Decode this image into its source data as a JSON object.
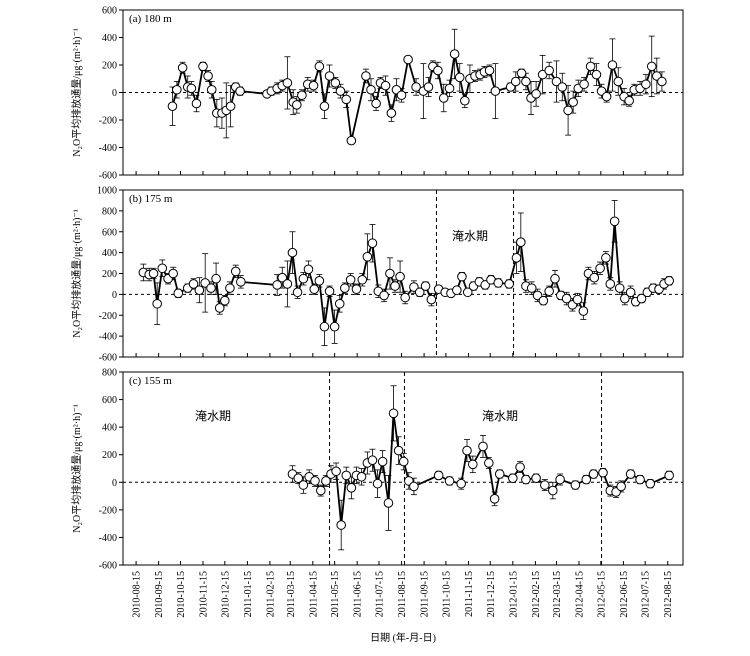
{
  "chart_data": [
    {
      "type": "line",
      "title": "(a) 180 m",
      "ylabel": "N₂O平均排放通量/μg·(m²·h)⁻¹",
      "xlim": [
        "2010-07-28",
        "2012-09-05"
      ],
      "xticks": [
        "2010-08-15",
        "2010-09-15",
        "2010-10-15",
        "2010-11-15",
        "2010-12-15",
        "2011-01-15",
        "2011-02-15",
        "2011-03-15",
        "2011-04-15",
        "2011-05-15",
        "2011-06-15",
        "2011-07-15",
        "2011-08-15",
        "2011-09-15",
        "2011-10-15",
        "2011-11-15",
        "2011-12-15",
        "2012-01-15",
        "2012-02-15",
        "2012-03-15",
        "2012-04-15",
        "2012-05-15",
        "2012-06-15",
        "2012-07-15",
        "2012-08-15"
      ],
      "ylim": [
        -600,
        600
      ],
      "yticks": [
        -600,
        -400,
        -200,
        0,
        200,
        400,
        600
      ],
      "hline": 0,
      "vlines": [],
      "annotations": [],
      "color": "#000000",
      "x": [
        "2010-10-04",
        "2010-10-10",
        "2010-10-18",
        "2010-10-25",
        "2010-10-30",
        "2010-11-06",
        "2010-11-15",
        "2010-11-22",
        "2010-11-27",
        "2010-12-04",
        "2010-12-11",
        "2010-12-17",
        "2010-12-23",
        "2010-12-30",
        "2011-01-05",
        "2011-02-11",
        "2011-02-17",
        "2011-02-25",
        "2011-03-04",
        "2011-03-11",
        "2011-03-19",
        "2011-03-24",
        "2011-03-31",
        "2011-04-08",
        "2011-04-16",
        "2011-04-24",
        "2011-05-01",
        "2011-05-08",
        "2011-05-16",
        "2011-05-23",
        "2011-05-31",
        "2011-06-07",
        "2011-06-27",
        "2011-07-04",
        "2011-07-11",
        "2011-07-17",
        "2011-07-24",
        "2011-08-01",
        "2011-08-08",
        "2011-08-15",
        "2011-08-24",
        "2011-09-04",
        "2011-09-14",
        "2011-09-21",
        "2011-09-27",
        "2011-10-04",
        "2011-10-12",
        "2011-10-20",
        "2011-10-27",
        "2011-11-03",
        "2011-11-10",
        "2011-11-17",
        "2011-11-24",
        "2011-12-01",
        "2011-12-07",
        "2011-12-14",
        "2011-12-22",
        "2012-01-12",
        "2012-01-19",
        "2012-01-27",
        "2012-02-02",
        "2012-02-09",
        "2012-02-16",
        "2012-02-25",
        "2012-03-05",
        "2012-03-15",
        "2012-03-23",
        "2012-03-31",
        "2012-04-07",
        "2012-04-14",
        "2012-04-22",
        "2012-05-01",
        "2012-05-09",
        "2012-05-16",
        "2012-05-23",
        "2012-05-31",
        "2012-06-08",
        "2012-06-16",
        "2012-06-23",
        "2012-06-30",
        "2012-07-08",
        "2012-07-16",
        "2012-07-24",
        "2012-07-31",
        "2012-08-07"
      ],
      "values": [
        -100,
        20,
        180,
        40,
        30,
        -80,
        190,
        120,
        20,
        -150,
        -150,
        -130,
        -100,
        40,
        10,
        -10,
        10,
        30,
        50,
        70,
        -70,
        -90,
        -20,
        60,
        50,
        190,
        -100,
        120,
        70,
        10,
        -50,
        -350,
        120,
        20,
        -80,
        70,
        50,
        -150,
        20,
        -20,
        240,
        40,
        10,
        40,
        190,
        160,
        -40,
        30,
        280,
        110,
        -60,
        100,
        120,
        130,
        150,
        160,
        10,
        40,
        80,
        140,
        80,
        -40,
        -10,
        130,
        160,
        80,
        40,
        -130,
        -70,
        30,
        60,
        190,
        130,
        10,
        -30,
        200,
        80,
        -30,
        -60,
        20,
        30,
        60,
        190,
        120,
        80
      ],
      "errors": [
        140,
        60,
        40,
        80,
        50,
        60,
        30,
        40,
        60,
        100,
        110,
        200,
        150,
        30,
        30,
        20,
        30,
        40,
        40,
        190,
        90,
        60,
        40,
        50,
        40,
        40,
        90,
        80,
        40,
        50,
        60,
        20,
        50,
        80,
        50,
        40,
        70,
        60,
        80,
        50,
        20,
        60,
        200,
        70,
        40,
        60,
        100,
        60,
        180,
        100,
        50,
        100,
        40,
        40,
        40,
        40,
        200,
        30,
        70,
        30,
        60,
        120,
        90,
        140,
        60,
        150,
        100,
        180,
        80,
        60,
        50,
        60,
        80,
        50,
        40,
        190,
        100,
        60,
        40,
        40,
        50,
        70,
        220,
        130,
        70
      ]
    },
    {
      "type": "line",
      "title": "(b) 175 m",
      "ylabel": "N₂O平均排放通量/μg·(m²·h)⁻¹",
      "xlim": [
        "2010-07-28",
        "2012-09-05"
      ],
      "xticks": [
        "2010-08-15",
        "2010-09-15",
        "2010-10-15",
        "2010-11-15",
        "2010-12-15",
        "2011-01-15",
        "2011-02-15",
        "2011-03-15",
        "2011-04-15",
        "2011-05-15",
        "2011-06-15",
        "2011-07-15",
        "2011-08-15",
        "2011-09-15",
        "2011-10-15",
        "2011-11-15",
        "2011-12-15",
        "2012-01-15",
        "2012-02-15",
        "2012-03-15",
        "2012-04-15",
        "2012-05-15",
        "2012-06-15",
        "2012-07-15",
        "2012-08-15"
      ],
      "ylim": [
        -600,
        1000
      ],
      "yticks": [
        -600,
        -400,
        -200,
        0,
        200,
        400,
        600,
        800,
        1000
      ],
      "hline": 0,
      "vlines": [
        "2011-10-02",
        "2012-01-16"
      ],
      "annotations": [
        "淹水期"
      ],
      "color": "#000000",
      "x": [
        "2010-08-25",
        "2010-09-02",
        "2010-09-08",
        "2010-09-13",
        "2010-09-20",
        "2010-09-28",
        "2010-10-05",
        "2010-10-12",
        "2010-10-25",
        "2010-11-02",
        "2010-11-10",
        "2010-11-18",
        "2010-11-26",
        "2010-12-03",
        "2010-12-08",
        "2010-12-15",
        "2010-12-22",
        "2010-12-30",
        "2011-01-06",
        "2011-02-25",
        "2011-03-04",
        "2011-03-11",
        "2011-03-18",
        "2011-03-25",
        "2011-04-02",
        "2011-04-09",
        "2011-04-17",
        "2011-04-24",
        "2011-05-01",
        "2011-05-08",
        "2011-05-15",
        "2011-05-22",
        "2011-05-29",
        "2011-06-06",
        "2011-06-14",
        "2011-06-22",
        "2011-06-29",
        "2011-07-06",
        "2011-07-14",
        "2011-07-22",
        "2011-07-30",
        "2011-08-06",
        "2011-08-13",
        "2011-08-20",
        "2011-09-01",
        "2011-09-09",
        "2011-09-17",
        "2011-09-25",
        "2011-10-05",
        "2011-10-14",
        "2011-10-22",
        "2011-10-30",
        "2011-11-06",
        "2011-11-14",
        "2011-11-22",
        "2011-11-30",
        "2011-12-08",
        "2011-12-16",
        "2011-12-26",
        "2012-01-10",
        "2012-01-20",
        "2012-01-26",
        "2012-02-02",
        "2012-02-10",
        "2012-02-18",
        "2012-02-26",
        "2012-03-05",
        "2012-03-13",
        "2012-03-21",
        "2012-03-29",
        "2012-04-06",
        "2012-04-13",
        "2012-04-21",
        "2012-04-28",
        "2012-05-06",
        "2012-05-14",
        "2012-05-22",
        "2012-05-28",
        "2012-06-03",
        "2012-06-10",
        "2012-06-17",
        "2012-06-25",
        "2012-07-02",
        "2012-07-10",
        "2012-07-18",
        "2012-07-26",
        "2012-08-03",
        "2012-08-10",
        "2012-08-17"
      ],
      "values": [
        210,
        190,
        200,
        -90,
        250,
        150,
        200,
        10,
        60,
        100,
        40,
        110,
        60,
        150,
        -130,
        -60,
        60,
        220,
        120,
        90,
        160,
        100,
        400,
        20,
        150,
        240,
        50,
        130,
        -310,
        30,
        -310,
        -90,
        60,
        140,
        50,
        140,
        360,
        490,
        30,
        -10,
        200,
        80,
        170,
        -30,
        70,
        20,
        80,
        -50,
        50,
        20,
        10,
        40,
        170,
        20,
        80,
        120,
        90,
        140,
        110,
        100,
        350,
        500,
        80,
        60,
        -10,
        -60,
        30,
        150,
        -10,
        -40,
        -100,
        -50,
        -160,
        200,
        160,
        250,
        350,
        100,
        700,
        60,
        -40,
        20,
        -70,
        -40,
        20,
        60,
        50,
        100,
        130
      ],
      "errors": [
        80,
        60,
        50,
        200,
        80,
        50,
        60,
        40,
        40,
        50,
        120,
        280,
        60,
        150,
        60,
        50,
        60,
        60,
        60,
        100,
        100,
        220,
        200,
        60,
        60,
        80,
        50,
        60,
        180,
        50,
        160,
        80,
        50,
        60,
        50,
        60,
        220,
        180,
        60,
        60,
        150,
        60,
        150,
        60,
        60,
        40,
        40,
        60,
        30,
        30,
        20,
        30,
        40,
        30,
        40,
        40,
        40,
        40,
        40,
        40,
        150,
        280,
        60,
        60,
        60,
        40,
        50,
        80,
        40,
        60,
        60,
        60,
        80,
        60,
        60,
        60,
        60,
        60,
        200,
        60,
        60,
        60,
        40,
        40,
        40,
        40,
        40,
        50,
        40
      ]
    },
    {
      "type": "line",
      "title": "(c) 155 m",
      "ylabel": "N₂O平均排放通量/μg·(m²·h)⁻¹",
      "xlabel": "日期 (年-月-日)",
      "xlim": [
        "2010-07-28",
        "2012-09-05"
      ],
      "xticks": [
        "2010-08-15",
        "2010-09-15",
        "2010-10-15",
        "2010-11-15",
        "2010-12-15",
        "2011-01-15",
        "2011-02-15",
        "2011-03-15",
        "2011-04-15",
        "2011-05-15",
        "2011-06-15",
        "2011-07-15",
        "2011-08-15",
        "2011-09-15",
        "2011-10-15",
        "2011-11-15",
        "2011-12-15",
        "2012-01-15",
        "2012-02-15",
        "2012-03-15",
        "2012-04-15",
        "2012-05-15",
        "2012-06-15",
        "2012-07-15",
        "2012-08-15"
      ],
      "ylim": [
        -600,
        800
      ],
      "yticks": [
        -600,
        -400,
        -200,
        0,
        200,
        400,
        600,
        800
      ],
      "hline": 0,
      "vlines": [
        "2011-05-08",
        "2011-08-19",
        "2012-05-16"
      ],
      "annotations": [
        "淹水期",
        "淹水期"
      ],
      "color": "#000000",
      "x": [
        "2011-03-18",
        "2011-03-26",
        "2011-04-02",
        "2011-04-10",
        "2011-04-18",
        "2011-04-26",
        "2011-05-03",
        "2011-05-10",
        "2011-05-17",
        "2011-05-24",
        "2011-05-31",
        "2011-06-07",
        "2011-06-14",
        "2011-06-21",
        "2011-06-29",
        "2011-07-06",
        "2011-07-13",
        "2011-07-20",
        "2011-07-28",
        "2011-08-04",
        "2011-08-11",
        "2011-08-18",
        "2011-08-25",
        "2011-09-01",
        "2011-10-05",
        "2011-10-20",
        "2011-11-05",
        "2011-11-13",
        "2011-11-21",
        "2011-12-05",
        "2011-12-13",
        "2011-12-21",
        "2011-12-28",
        "2012-01-15",
        "2012-01-25",
        "2012-02-02",
        "2012-02-16",
        "2012-02-28",
        "2012-03-10",
        "2012-03-20",
        "2012-04-10",
        "2012-04-25",
        "2012-05-05",
        "2012-05-18",
        "2012-05-28",
        "2012-06-05",
        "2012-06-12",
        "2012-06-25",
        "2012-07-08",
        "2012-07-22",
        "2012-08-17"
      ],
      "values": [
        60,
        30,
        -20,
        40,
        10,
        -60,
        10,
        60,
        80,
        -310,
        50,
        -40,
        50,
        40,
        140,
        160,
        -10,
        150,
        -150,
        500,
        230,
        150,
        10,
        -30,
        50,
        10,
        -10,
        230,
        130,
        260,
        140,
        -120,
        60,
        30,
        110,
        20,
        30,
        -20,
        -60,
        20,
        -20,
        20,
        60,
        70,
        -60,
        -70,
        -30,
        60,
        20,
        -10,
        50
      ],
      "errors": [
        60,
        40,
        60,
        50,
        40,
        40,
        40,
        60,
        60,
        180,
        60,
        80,
        60,
        60,
        80,
        80,
        100,
        80,
        200,
        200,
        100,
        60,
        60,
        60,
        30,
        30,
        40,
        80,
        60,
        80,
        40,
        50,
        30,
        30,
        40,
        30,
        30,
        40,
        60,
        40,
        30,
        30,
        30,
        30,
        40,
        40,
        40,
        30,
        30,
        30,
        30
      ]
    }
  ]
}
